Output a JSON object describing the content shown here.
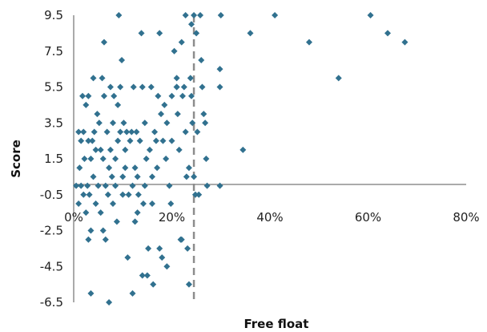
{
  "chart_data": {
    "type": "scatter",
    "title": "",
    "xlabel": "Free float",
    "ylabel": "Score",
    "xlim": [
      0,
      0.8
    ],
    "ylim": [
      -6.5,
      9.5
    ],
    "x_ticks": [
      0,
      0.2,
      0.4,
      0.6,
      0.8
    ],
    "x_tick_labels": [
      "0%",
      "20%",
      "40%",
      "60%",
      "80%"
    ],
    "y_ticks": [
      -6.5,
      -4.5,
      -2.5,
      -0.5,
      1.5,
      3.5,
      5.5,
      7.5,
      9.5
    ],
    "y_tick_labels": [
      "-6.5",
      "-4.5",
      "-2.5",
      "-0.5",
      "1.5",
      "3.5",
      "5.5",
      "7.5",
      "9.5"
    ],
    "grid": false,
    "legend": "none",
    "marker_color": "#31718f",
    "reference_line": {
      "x": 0.245,
      "style": "dashed",
      "color": "#8c8c8c"
    },
    "points": [
      [
        0.005,
        0.0
      ],
      [
        0.01,
        3.0
      ],
      [
        0.01,
        -1.0
      ],
      [
        0.012,
        1.0
      ],
      [
        0.015,
        2.5
      ],
      [
        0.015,
        0.0
      ],
      [
        0.018,
        5.0
      ],
      [
        0.02,
        3.0
      ],
      [
        0.02,
        -0.5
      ],
      [
        0.022,
        1.5
      ],
      [
        0.025,
        4.5
      ],
      [
        0.025,
        -1.5
      ],
      [
        0.028,
        0.0
      ],
      [
        0.03,
        5.0
      ],
      [
        0.03,
        2.5
      ],
      [
        0.03,
        -3.0
      ],
      [
        0.032,
        -0.5
      ],
      [
        0.035,
        1.5
      ],
      [
        0.035,
        -2.5
      ],
      [
        0.035,
        -6.0
      ],
      [
        0.038,
        2.5
      ],
      [
        0.04,
        6.0
      ],
      [
        0.04,
        0.5
      ],
      [
        0.042,
        3.0
      ],
      [
        0.045,
        2.0
      ],
      [
        0.045,
        -1.0
      ],
      [
        0.048,
        4.0
      ],
      [
        0.05,
        0.0
      ],
      [
        0.052,
        3.5
      ],
      [
        0.055,
        2.0
      ],
      [
        0.055,
        -1.5
      ],
      [
        0.058,
        6.0
      ],
      [
        0.06,
        1.5
      ],
      [
        0.06,
        -2.5
      ],
      [
        0.062,
        5.0
      ],
      [
        0.062,
        8.0
      ],
      [
        0.065,
        0.0
      ],
      [
        0.065,
        -3.0
      ],
      [
        0.068,
        3.0
      ],
      [
        0.07,
        -0.5
      ],
      [
        0.072,
        1.0
      ],
      [
        0.072,
        -6.5
      ],
      [
        0.075,
        5.5
      ],
      [
        0.075,
        2.0
      ],
      [
        0.078,
        0.5
      ],
      [
        0.08,
        -1.0
      ],
      [
        0.08,
        3.5
      ],
      [
        0.082,
        5.0
      ],
      [
        0.085,
        1.5
      ],
      [
        0.085,
        0.0
      ],
      [
        0.088,
        -2.0
      ],
      [
        0.09,
        4.5
      ],
      [
        0.09,
        2.5
      ],
      [
        0.092,
        9.5
      ],
      [
        0.095,
        5.5
      ],
      [
        0.095,
        3.0
      ],
      [
        0.098,
        7.0
      ],
      [
        0.1,
        0.5
      ],
      [
        0.1,
        -0.5
      ],
      [
        0.102,
        3.5
      ],
      [
        0.105,
        2.0
      ],
      [
        0.105,
        1.0
      ],
      [
        0.108,
        3.0
      ],
      [
        0.11,
        -4.0
      ],
      [
        0.112,
        -0.5
      ],
      [
        0.115,
        2.5
      ],
      [
        0.118,
        3.0
      ],
      [
        0.12,
        0.0
      ],
      [
        0.12,
        -6.0
      ],
      [
        0.122,
        5.5
      ],
      [
        0.125,
        1.0
      ],
      [
        0.125,
        -2.0
      ],
      [
        0.128,
        3.0
      ],
      [
        0.13,
        0.5
      ],
      [
        0.13,
        -1.5
      ],
      [
        0.132,
        -0.5
      ],
      [
        0.135,
        2.5
      ],
      [
        0.138,
        8.5
      ],
      [
        0.14,
        -5.0
      ],
      [
        0.14,
        5.5
      ],
      [
        0.142,
        -1.0
      ],
      [
        0.145,
        3.5
      ],
      [
        0.145,
        0.0
      ],
      [
        0.148,
        1.5
      ],
      [
        0.15,
        -5.0
      ],
      [
        0.152,
        -3.5
      ],
      [
        0.155,
        2.0
      ],
      [
        0.158,
        5.5
      ],
      [
        0.16,
        0.5
      ],
      [
        0.16,
        -1.0
      ],
      [
        0.162,
        -5.5
      ],
      [
        0.165,
        3.0
      ],
      [
        0.168,
        2.5
      ],
      [
        0.17,
        1.0
      ],
      [
        0.172,
        5.0
      ],
      [
        0.175,
        8.5
      ],
      [
        0.175,
        -3.5
      ],
      [
        0.178,
        4.0
      ],
      [
        0.18,
        -4.0
      ],
      [
        0.182,
        2.5
      ],
      [
        0.185,
        4.5
      ],
      [
        0.188,
        1.5
      ],
      [
        0.19,
        3.5
      ],
      [
        0.19,
        -4.5
      ],
      [
        0.195,
        0.0
      ],
      [
        0.21,
        5.5
      ],
      [
        0.228,
        9.5
      ],
      [
        0.235,
        1.0
      ],
      [
        0.24,
        9.0
      ],
      [
        0.245,
        9.5
      ],
      [
        0.2,
        5.0
      ],
      [
        0.2,
        2.5
      ],
      [
        0.198,
        -1.0
      ],
      [
        0.205,
        7.5
      ],
      [
        0.21,
        6.0
      ],
      [
        0.21,
        5.5
      ],
      [
        0.212,
        4.0
      ],
      [
        0.215,
        2.0
      ],
      [
        0.218,
        -3.0
      ],
      [
        0.22,
        8.0
      ],
      [
        0.22,
        -3.0
      ],
      [
        0.222,
        5.0
      ],
      [
        0.225,
        5.5
      ],
      [
        0.228,
        3.0
      ],
      [
        0.23,
        0.5
      ],
      [
        0.232,
        -3.5
      ],
      [
        0.235,
        -5.5
      ],
      [
        0.238,
        6.0
      ],
      [
        0.24,
        5.0
      ],
      [
        0.242,
        3.5
      ],
      [
        0.245,
        0.5
      ],
      [
        0.248,
        -0.5
      ],
      [
        0.25,
        8.5
      ],
      [
        0.252,
        3.0
      ],
      [
        0.255,
        -0.5
      ],
      [
        0.258,
        9.5
      ],
      [
        0.26,
        7.0
      ],
      [
        0.262,
        5.5
      ],
      [
        0.265,
        4.0
      ],
      [
        0.268,
        3.5
      ],
      [
        0.27,
        1.5
      ],
      [
        0.272,
        0.0
      ],
      [
        0.3,
        9.5
      ],
      [
        0.298,
        6.5
      ],
      [
        0.298,
        5.5
      ],
      [
        0.298,
        0.0
      ],
      [
        0.345,
        2.0
      ],
      [
        0.36,
        8.5
      ],
      [
        0.41,
        9.5
      ],
      [
        0.48,
        8.0
      ],
      [
        0.54,
        6.0
      ],
      [
        0.605,
        9.5
      ],
      [
        0.64,
        8.5
      ],
      [
        0.675,
        8.0
      ]
    ]
  }
}
